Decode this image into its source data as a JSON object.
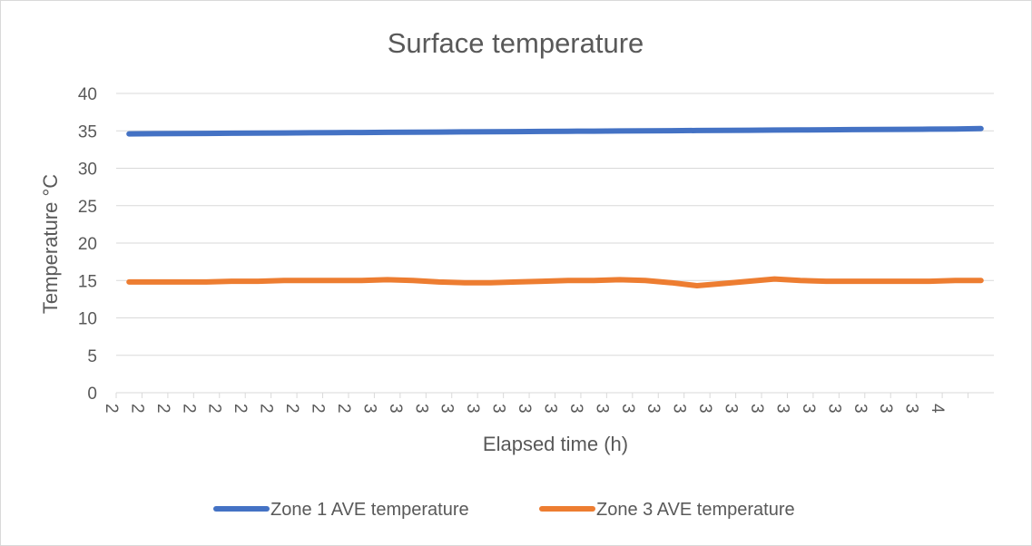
{
  "chart_data": {
    "type": "line",
    "title": "Surface temperature",
    "xlabel": "Elapsed time (h)",
    "ylabel": "Temperature °C",
    "ylim": [
      0,
      40
    ],
    "yticks": [
      "0",
      "5",
      "10",
      "15",
      "20",
      "25",
      "30",
      "35",
      "40"
    ],
    "categories": [
      "2",
      "2",
      "2",
      "2",
      "2",
      "2",
      "2",
      "2",
      "2",
      "2",
      "3",
      "3",
      "3",
      "3",
      "3",
      "3",
      "3",
      "3",
      "3",
      "3",
      "3",
      "3",
      "3",
      "3",
      "3",
      "3",
      "3",
      "3",
      "3",
      "3",
      "3",
      "3",
      "4",
      ""
    ],
    "grid": true,
    "legend_position": "bottom",
    "series": [
      {
        "name": "Zone 1 AVE temperature",
        "color": "#4472C4",
        "values": [
          34.6,
          34.62,
          34.64,
          34.66,
          34.68,
          34.7,
          34.72,
          34.74,
          34.76,
          34.78,
          34.8,
          34.82,
          34.84,
          34.86,
          34.88,
          34.9,
          34.92,
          34.94,
          34.96,
          34.98,
          35.0,
          35.02,
          35.04,
          35.06,
          35.08,
          35.1,
          35.12,
          35.14,
          35.16,
          35.18,
          35.2,
          35.22,
          35.24,
          35.3
        ]
      },
      {
        "name": "Zone 3 AVE temperature",
        "color": "#ED7D31",
        "values": [
          14.8,
          14.8,
          14.8,
          14.8,
          14.9,
          14.9,
          15.0,
          15.0,
          15.0,
          15.0,
          15.1,
          15.0,
          14.8,
          14.7,
          14.7,
          14.8,
          14.9,
          15.0,
          15.0,
          15.1,
          15.0,
          14.7,
          14.3,
          14.6,
          14.9,
          15.2,
          15.0,
          14.9,
          14.9,
          14.9,
          14.9,
          14.9,
          15.0,
          15.0
        ]
      }
    ]
  }
}
